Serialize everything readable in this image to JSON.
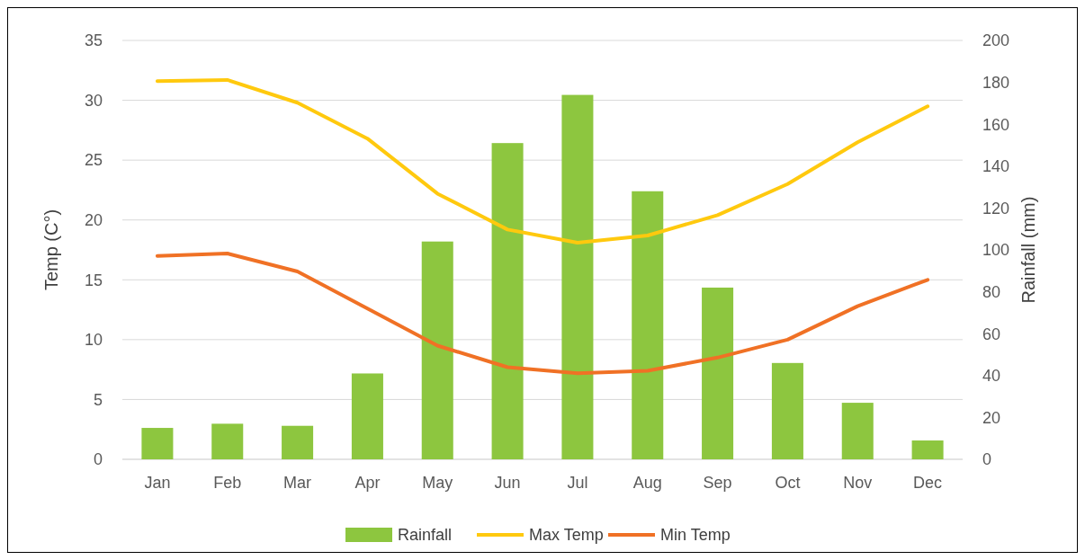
{
  "chart_data": {
    "type": "bar",
    "categories": [
      "Jan",
      "Feb",
      "Mar",
      "Apr",
      "May",
      "Jun",
      "Jul",
      "Aug",
      "Sep",
      "Oct",
      "Nov",
      "Dec"
    ],
    "ylabel": "Temp (C°)",
    "y2label": "Rainfall (mm)",
    "series": [
      {
        "name": "Rainfall",
        "axis": "y2",
        "color": "#8dc63f",
        "values": [
          15,
          17,
          16,
          41,
          104,
          151,
          174,
          128,
          82,
          46,
          27,
          9
        ]
      },
      {
        "name": "Max Temp",
        "type": "line",
        "axis": "y",
        "color": "#ffc90e",
        "values": [
          31.6,
          31.7,
          29.8,
          26.8,
          22.2,
          19.2,
          18.1,
          18.7,
          20.4,
          23.0,
          26.5,
          29.5
        ]
      },
      {
        "name": "Min Temp",
        "type": "line",
        "axis": "y",
        "color": "#f07125",
        "values": [
          17.0,
          17.2,
          15.7,
          12.6,
          9.5,
          7.7,
          7.2,
          7.4,
          8.5,
          10.0,
          12.8,
          15.0
        ]
      }
    ],
    "ylim": [
      0,
      35
    ],
    "yticks": [
      0,
      5,
      10,
      15,
      20,
      25,
      30,
      35
    ],
    "y2lim": [
      0,
      200
    ],
    "y2ticks": [
      0,
      20,
      40,
      60,
      80,
      100,
      120,
      140,
      160,
      180,
      200
    ],
    "grid": "y",
    "legend": "bottom",
    "marker": "none",
    "line_style": "solid"
  }
}
